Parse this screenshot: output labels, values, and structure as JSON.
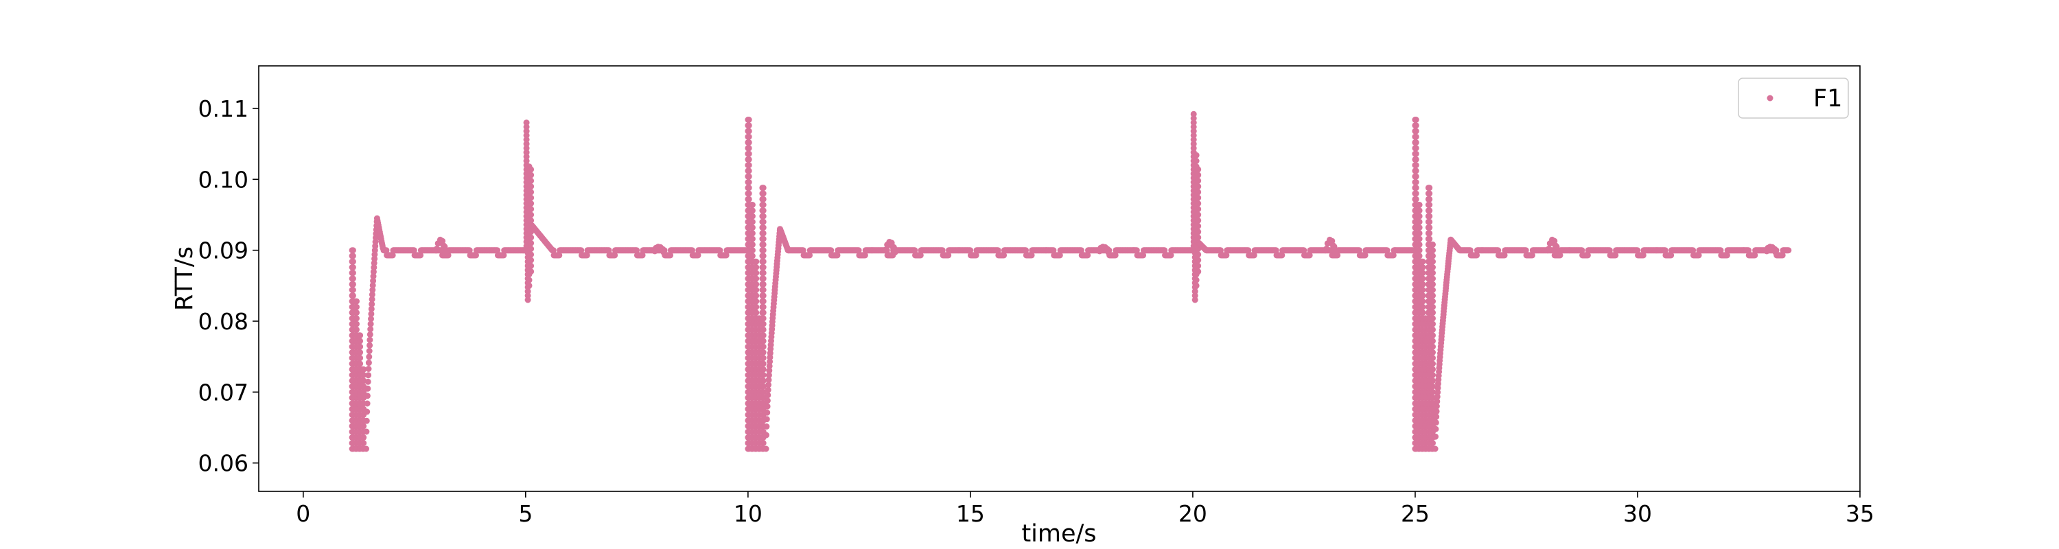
{
  "colors": {
    "series": "#d8739a",
    "axis": "#000000",
    "legend_border": "#cccccc",
    "background": "#ffffff"
  },
  "chart_data": {
    "type": "scatter",
    "xlabel": "time/s",
    "ylabel": "RTT/s",
    "xlim": [
      -1,
      35
    ],
    "ylim": [
      0.056,
      0.116
    ],
    "xticks": [
      0,
      5,
      10,
      15,
      20,
      25,
      30,
      35
    ],
    "yticks": [
      0.06,
      0.07,
      0.08,
      0.09,
      0.1,
      0.11
    ],
    "ytick_labels": [
      "0.06",
      "0.07",
      "0.08",
      "0.09",
      "0.10",
      "0.11"
    ],
    "grid": false,
    "legend_position": "top-right",
    "series": [
      {
        "name": "F1",
        "x_range": [
          1.1,
          33.4
        ],
        "baseline": 0.09,
        "baseline_alt": 0.0893,
        "events": [
          {
            "start": 1.1,
            "end": 1.8,
            "low": 0.062,
            "high": 0.0905,
            "overshoot": 0.0945,
            "type": "drop"
          },
          {
            "start": 5.0,
            "end": 5.6,
            "low": 0.083,
            "high": 0.1085,
            "overshoot": 0.0935,
            "type": "spike"
          },
          {
            "start": 10.0,
            "end": 10.9,
            "low": 0.062,
            "high": 0.109,
            "overshoot": 0.093,
            "type": "drop"
          },
          {
            "start": 20.0,
            "end": 20.3,
            "low": 0.083,
            "high": 0.1095,
            "overshoot": 0.091,
            "type": "spike"
          },
          {
            "start": 25.0,
            "end": 26.0,
            "low": 0.062,
            "high": 0.109,
            "overshoot": 0.0915,
            "type": "drop"
          }
        ],
        "minor_bumps": [
          {
            "x": 3.1,
            "y": 0.0915
          },
          {
            "x": 8.0,
            "y": 0.0905
          },
          {
            "x": 13.2,
            "y": 0.0912
          },
          {
            "x": 18.0,
            "y": 0.0905
          },
          {
            "x": 23.1,
            "y": 0.0915
          },
          {
            "x": 28.1,
            "y": 0.0915
          },
          {
            "x": 33.0,
            "y": 0.0905
          }
        ]
      }
    ]
  }
}
